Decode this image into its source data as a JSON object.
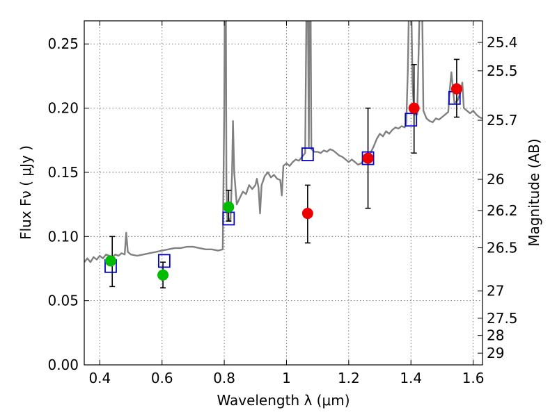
{
  "chart_data": {
    "type": "scatter",
    "title": "",
    "xlabel": "Wavelength  λ (μm)",
    "ylabel": "Flux  Fν  ( μJy )",
    "y2label": "Magnitude (AB)",
    "xlim": [
      0.35,
      1.63
    ],
    "ylim": [
      0.0,
      0.268
    ],
    "grid": true,
    "x_ticks": [
      {
        "value": 0.4,
        "label": "0.4"
      },
      {
        "value": 0.6,
        "label": "0.6"
      },
      {
        "value": 0.8,
        "label": "0.8"
      },
      {
        "value": 1.0,
        "label": "1"
      },
      {
        "value": 1.2,
        "label": "1.2"
      },
      {
        "value": 1.4,
        "label": "1.4"
      },
      {
        "value": 1.6,
        "label": "1.6"
      }
    ],
    "y_ticks": [
      {
        "value": 0.0,
        "label": "0.00"
      },
      {
        "value": 0.05,
        "label": "0.05"
      },
      {
        "value": 0.1,
        "label": "0.10"
      },
      {
        "value": 0.15,
        "label": "0.15"
      },
      {
        "value": 0.2,
        "label": "0.20"
      },
      {
        "value": 0.25,
        "label": "0.25"
      }
    ],
    "mag_ticks": [
      {
        "value": 25.4,
        "label": "25.4"
      },
      {
        "value": 25.5,
        "label": "25.5"
      },
      {
        "value": 25.7,
        "label": "25.7"
      },
      {
        "value": 26.0,
        "label": "26"
      },
      {
        "value": 26.2,
        "label": "26.2"
      },
      {
        "value": 26.5,
        "label": "26.5"
      },
      {
        "value": 27.0,
        "label": "27"
      },
      {
        "value": 27.5,
        "label": "27.5"
      },
      {
        "value": 28.0,
        "label": "28"
      },
      {
        "value": 29.0,
        "label": "29"
      }
    ],
    "spectrum": {
      "color": "#808080",
      "points": [
        [
          0.35,
          0.08
        ],
        [
          0.36,
          0.083
        ],
        [
          0.37,
          0.08
        ],
        [
          0.38,
          0.084
        ],
        [
          0.39,
          0.082
        ],
        [
          0.4,
          0.085
        ],
        [
          0.41,
          0.083
        ],
        [
          0.42,
          0.086
        ],
        [
          0.43,
          0.085
        ],
        [
          0.44,
          0.084
        ],
        [
          0.45,
          0.086
        ],
        [
          0.46,
          0.085
        ],
        [
          0.47,
          0.087
        ],
        [
          0.48,
          0.086
        ],
        [
          0.485,
          0.103
        ],
        [
          0.49,
          0.088
        ],
        [
          0.5,
          0.086
        ],
        [
          0.52,
          0.085
        ],
        [
          0.54,
          0.086
        ],
        [
          0.56,
          0.087
        ],
        [
          0.58,
          0.088
        ],
        [
          0.6,
          0.089
        ],
        [
          0.62,
          0.09
        ],
        [
          0.64,
          0.091
        ],
        [
          0.66,
          0.091
        ],
        [
          0.68,
          0.092
        ],
        [
          0.7,
          0.092
        ],
        [
          0.72,
          0.091
        ],
        [
          0.74,
          0.09
        ],
        [
          0.76,
          0.09
        ],
        [
          0.78,
          0.089
        ],
        [
          0.795,
          0.09
        ],
        [
          0.8,
          0.2
        ],
        [
          0.802,
          0.3
        ],
        [
          0.805,
          0.3
        ],
        [
          0.807,
          0.14
        ],
        [
          0.81,
          0.113
        ],
        [
          0.815,
          0.114
        ],
        [
          0.82,
          0.112
        ],
        [
          0.825,
          0.15
        ],
        [
          0.828,
          0.19
        ],
        [
          0.832,
          0.15
        ],
        [
          0.84,
          0.125
        ],
        [
          0.85,
          0.13
        ],
        [
          0.86,
          0.135
        ],
        [
          0.87,
          0.133
        ],
        [
          0.88,
          0.14
        ],
        [
          0.89,
          0.137
        ],
        [
          0.9,
          0.14
        ],
        [
          0.905,
          0.145
        ],
        [
          0.91,
          0.138
        ],
        [
          0.915,
          0.118
        ],
        [
          0.92,
          0.14
        ],
        [
          0.93,
          0.147
        ],
        [
          0.94,
          0.15
        ],
        [
          0.95,
          0.146
        ],
        [
          0.96,
          0.148
        ],
        [
          0.97,
          0.145
        ],
        [
          0.98,
          0.144
        ],
        [
          0.985,
          0.132
        ],
        [
          0.99,
          0.155
        ],
        [
          1.0,
          0.157
        ],
        [
          1.01,
          0.155
        ],
        [
          1.02,
          0.158
        ],
        [
          1.03,
          0.16
        ],
        [
          1.04,
          0.159
        ],
        [
          1.05,
          0.162
        ],
        [
          1.06,
          0.165
        ],
        [
          1.065,
          0.3
        ],
        [
          1.068,
          0.3
        ],
        [
          1.072,
          0.17
        ],
        [
          1.074,
          0.3
        ],
        [
          1.077,
          0.3
        ],
        [
          1.08,
          0.168
        ],
        [
          1.09,
          0.166
        ],
        [
          1.1,
          0.166
        ],
        [
          1.11,
          0.165
        ],
        [
          1.12,
          0.167
        ],
        [
          1.13,
          0.166
        ],
        [
          1.14,
          0.168
        ],
        [
          1.15,
          0.167
        ],
        [
          1.16,
          0.165
        ],
        [
          1.17,
          0.163
        ],
        [
          1.18,
          0.162
        ],
        [
          1.19,
          0.16
        ],
        [
          1.2,
          0.158
        ],
        [
          1.21,
          0.16
        ],
        [
          1.22,
          0.158
        ],
        [
          1.23,
          0.156
        ],
        [
          1.24,
          0.157
        ],
        [
          1.25,
          0.16
        ],
        [
          1.26,
          0.162
        ],
        [
          1.27,
          0.165
        ],
        [
          1.28,
          0.17
        ],
        [
          1.29,
          0.176
        ],
        [
          1.3,
          0.18
        ],
        [
          1.31,
          0.178
        ],
        [
          1.32,
          0.182
        ],
        [
          1.33,
          0.18
        ],
        [
          1.34,
          0.183
        ],
        [
          1.35,
          0.185
        ],
        [
          1.36,
          0.184
        ],
        [
          1.37,
          0.186
        ],
        [
          1.38,
          0.185
        ],
        [
          1.385,
          0.188
        ],
        [
          1.39,
          0.23
        ],
        [
          1.395,
          0.3
        ],
        [
          1.4,
          0.3
        ],
        [
          1.405,
          0.22
        ],
        [
          1.41,
          0.195
        ],
        [
          1.42,
          0.195
        ],
        [
          1.43,
          0.3
        ],
        [
          1.435,
          0.3
        ],
        [
          1.44,
          0.198
        ],
        [
          1.45,
          0.192
        ],
        [
          1.46,
          0.19
        ],
        [
          1.47,
          0.189
        ],
        [
          1.48,
          0.192
        ],
        [
          1.49,
          0.191
        ],
        [
          1.5,
          0.193
        ],
        [
          1.51,
          0.195
        ],
        [
          1.52,
          0.197
        ],
        [
          1.525,
          0.215
        ],
        [
          1.53,
          0.228
        ],
        [
          1.535,
          0.215
        ],
        [
          1.54,
          0.204
        ],
        [
          1.55,
          0.206
        ],
        [
          1.56,
          0.213
        ],
        [
          1.565,
          0.22
        ],
        [
          1.57,
          0.2
        ],
        [
          1.58,
          0.198
        ],
        [
          1.59,
          0.196
        ],
        [
          1.6,
          0.198
        ],
        [
          1.61,
          0.195
        ],
        [
          1.62,
          0.193
        ],
        [
          1.63,
          0.192
        ]
      ]
    },
    "series": [
      {
        "marker": "square",
        "color": "#0000cc",
        "points": [
          {
            "x": 0.435,
            "y": 0.077
          },
          {
            "x": 0.607,
            "y": 0.081
          },
          {
            "x": 0.814,
            "y": 0.114
          },
          {
            "x": 1.068,
            "y": 0.164
          },
          {
            "x": 1.262,
            "y": 0.161
          },
          {
            "x": 1.4,
            "y": 0.191
          },
          {
            "x": 1.54,
            "y": 0.208
          }
        ]
      },
      {
        "marker": "circle",
        "color": "#00bb00",
        "points": [
          {
            "x": 0.435,
            "y": 0.081
          },
          {
            "x": 0.603,
            "y": 0.07
          },
          {
            "x": 0.814,
            "y": 0.123
          }
        ]
      },
      {
        "marker": "circle",
        "color": "#ee0000",
        "points": [
          {
            "x": 1.068,
            "y": 0.118
          },
          {
            "x": 1.262,
            "y": 0.161
          },
          {
            "x": 1.41,
            "y": 0.2
          },
          {
            "x": 1.547,
            "y": 0.215
          }
        ]
      }
    ],
    "error_bars": [
      {
        "x": 0.44,
        "low": 0.061,
        "high": 0.1
      },
      {
        "x": 0.603,
        "low": 0.06,
        "high": 0.08
      },
      {
        "x": 0.814,
        "low": 0.112,
        "high": 0.136
      },
      {
        "x": 1.068,
        "low": 0.095,
        "high": 0.14
      },
      {
        "x": 1.262,
        "low": 0.122,
        "high": 0.2
      },
      {
        "x": 1.41,
        "low": 0.165,
        "high": 0.234
      },
      {
        "x": 1.547,
        "low": 0.193,
        "high": 0.238
      }
    ]
  }
}
